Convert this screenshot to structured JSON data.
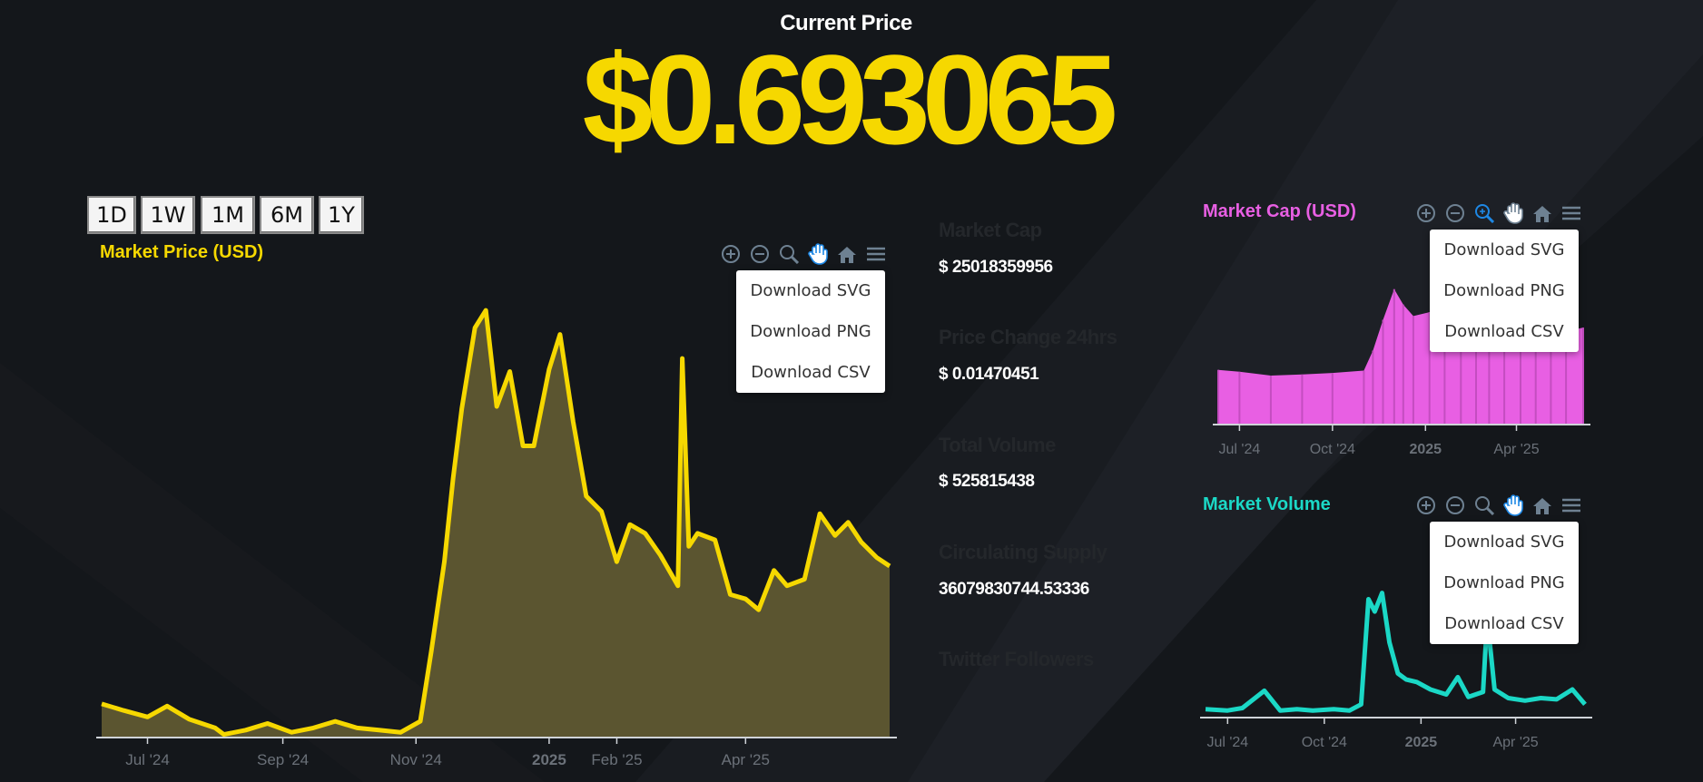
{
  "header": {
    "label": "Current Price",
    "price": "$0.693065"
  },
  "range_buttons": [
    "1D",
    "1W",
    "1M",
    "6M",
    "1Y"
  ],
  "menu_items": [
    "Download SVG",
    "Download PNG",
    "Download CSV"
  ],
  "stats": [
    {
      "label": "Market Cap",
      "value": "$ 25018359956"
    },
    {
      "label": "Price Change 24hrs",
      "value": "$ 0.01470451"
    },
    {
      "label": "Total Volume",
      "value": "$ 525815438"
    },
    {
      "label": "Circulating Supply",
      "value": "36079830744.53336"
    },
    {
      "label": "Twitter Followers",
      "value": ""
    }
  ],
  "colors": {
    "background": "#14171b",
    "price": "#f6d800",
    "market_cap": "#e85fe3",
    "volume": "#1bd8c6",
    "stat_label": "#24272b"
  },
  "chart_data": [
    {
      "type": "area",
      "title": "Market Price (USD)",
      "color": "#f6d800",
      "x_ticks": [
        "Jul '24",
        "Sep '24",
        "Nov '24",
        "2025",
        "Feb '25",
        "Apr '25"
      ],
      "x": [
        "2024-06-10",
        "2024-06-20",
        "2024-07-01",
        "2024-07-10",
        "2024-07-20",
        "2024-08-01",
        "2024-08-05",
        "2024-08-15",
        "2024-08-25",
        "2024-09-05",
        "2024-09-15",
        "2024-09-25",
        "2024-10-05",
        "2024-10-15",
        "2024-10-25",
        "2024-11-03",
        "2024-11-08",
        "2024-11-14",
        "2024-11-18",
        "2024-11-22",
        "2024-11-28",
        "2024-12-03",
        "2024-12-08",
        "2024-12-14",
        "2024-12-20",
        "2024-12-25",
        "2025-01-01",
        "2025-01-06",
        "2025-01-12",
        "2025-01-18",
        "2025-01-25",
        "2025-02-01",
        "2025-02-07",
        "2025-02-14",
        "2025-02-21",
        "2025-03-01",
        "2025-03-03",
        "2025-03-06",
        "2025-03-10",
        "2025-03-18",
        "2025-03-25",
        "2025-04-01",
        "2025-04-07",
        "2025-04-14",
        "2025-04-20",
        "2025-04-28",
        "2025-05-05",
        "2025-05-12",
        "2025-05-18",
        "2025-05-24",
        "2025-05-31",
        "2025-06-06"
      ],
      "values": [
        0.5,
        0.47,
        0.44,
        0.49,
        0.43,
        0.39,
        0.36,
        0.38,
        0.41,
        0.37,
        0.39,
        0.42,
        0.39,
        0.38,
        0.37,
        0.42,
        0.74,
        1.15,
        1.53,
        1.85,
        2.22,
        2.3,
        1.86,
        2.02,
        1.68,
        1.68,
        2.03,
        2.19,
        1.79,
        1.45,
        1.38,
        1.15,
        1.32,
        1.28,
        1.18,
        1.04,
        2.08,
        1.22,
        1.28,
        1.25,
        1.0,
        0.98,
        0.93,
        1.11,
        1.04,
        1.07,
        1.37,
        1.27,
        1.33,
        1.24,
        1.17,
        1.13
      ]
    },
    {
      "type": "bar",
      "title": "Market Cap (USD)",
      "color": "#e85fe3",
      "x_ticks": [
        "Jul '24",
        "Oct '24",
        "2025",
        "Apr '25"
      ],
      "x": [
        "2024-06-10",
        "2024-07-01",
        "2024-08-01",
        "2024-09-01",
        "2024-10-01",
        "2024-11-01",
        "2024-11-10",
        "2024-11-20",
        "2024-12-01",
        "2024-12-10",
        "2024-12-20",
        "2025-01-05",
        "2025-01-20",
        "2025-02-05",
        "2025-02-20",
        "2025-03-05",
        "2025-03-20",
        "2025-04-05",
        "2025-04-20",
        "2025-05-05",
        "2025-05-20",
        "2025-06-06"
      ],
      "values": [
        14,
        13.5,
        12.5,
        12.8,
        13.2,
        13.8,
        19,
        27,
        35,
        31,
        28,
        29,
        26,
        24,
        23.5,
        24,
        22.5,
        23,
        22,
        24.5,
        24,
        25
      ]
    },
    {
      "type": "line",
      "title": "Market Volume",
      "color": "#1bd8c6",
      "x_ticks": [
        "Jul '24",
        "Oct '24",
        "2025",
        "Apr '25"
      ],
      "x": [
        "2024-06-10",
        "2024-07-01",
        "2024-07-15",
        "2024-08-05",
        "2024-08-20",
        "2024-09-05",
        "2024-09-20",
        "2024-10-10",
        "2024-10-25",
        "2024-11-05",
        "2024-11-12",
        "2024-11-18",
        "2024-11-25",
        "2024-12-02",
        "2024-12-10",
        "2024-12-18",
        "2024-12-28",
        "2025-01-10",
        "2025-01-25",
        "2025-02-05",
        "2025-02-15",
        "2025-03-01",
        "2025-03-05",
        "2025-03-12",
        "2025-03-25",
        "2025-04-10",
        "2025-04-25",
        "2025-05-10",
        "2025-05-25",
        "2025-06-06"
      ],
      "values": [
        0.6,
        0.5,
        0.7,
        2.1,
        0.5,
        0.6,
        0.5,
        0.6,
        0.5,
        1.0,
        9.5,
        8.5,
        10.0,
        6.0,
        3.5,
        3.0,
        2.8,
        2.2,
        1.8,
        3.2,
        1.6,
        2.0,
        8.0,
        2.2,
        1.5,
        1.3,
        1.5,
        1.4,
        2.2,
        1.0
      ]
    }
  ]
}
